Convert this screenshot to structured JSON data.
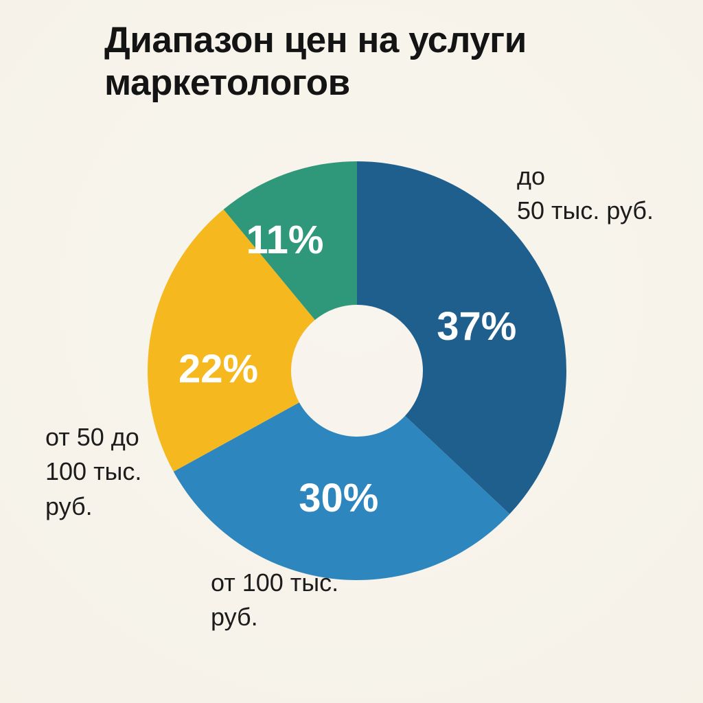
{
  "title": "Диапазон цен на услуги маркетологов",
  "colors": {
    "background": "#F6F2E9",
    "title_text": "#141414",
    "callout_text": "#1C1C1C",
    "percent_text": "#FFFFFF",
    "slice_dark_blue": "#1E5F8D",
    "slice_light_blue": "#2E86BE",
    "slice_yellow": "#F5B81F",
    "slice_green": "#2F987A"
  },
  "chart_data": {
    "type": "pie",
    "subtype": "donut",
    "title": "Диапазон цен на услуги маркетологов",
    "direction": "clockwise",
    "start_angle_deg": 0,
    "inner_radius_ratio": 0.31,
    "legend_position": "none",
    "grid": false,
    "total": 100,
    "units": "%",
    "segments": [
      {
        "category": "до 50 тыс. руб.",
        "value": 37,
        "percent_label": "37%",
        "color": "#1E5F8D",
        "callout_text": "до\n50 тыс. руб."
      },
      {
        "category": "от 100 тыс. руб.",
        "value": 30,
        "percent_label": "30%",
        "color": "#2E86BE",
        "callout_text": "от 100 тыс.\nруб."
      },
      {
        "category": "от 50 до 100 тыс. руб.",
        "value": 22,
        "percent_label": "22%",
        "color": "#F5B81F",
        "callout_text": "от 50 до\n100 тыс.\nруб."
      },
      {
        "category": "",
        "value": 11,
        "percent_label": "11%",
        "color": "#2F987A",
        "callout_text": ""
      }
    ]
  }
}
